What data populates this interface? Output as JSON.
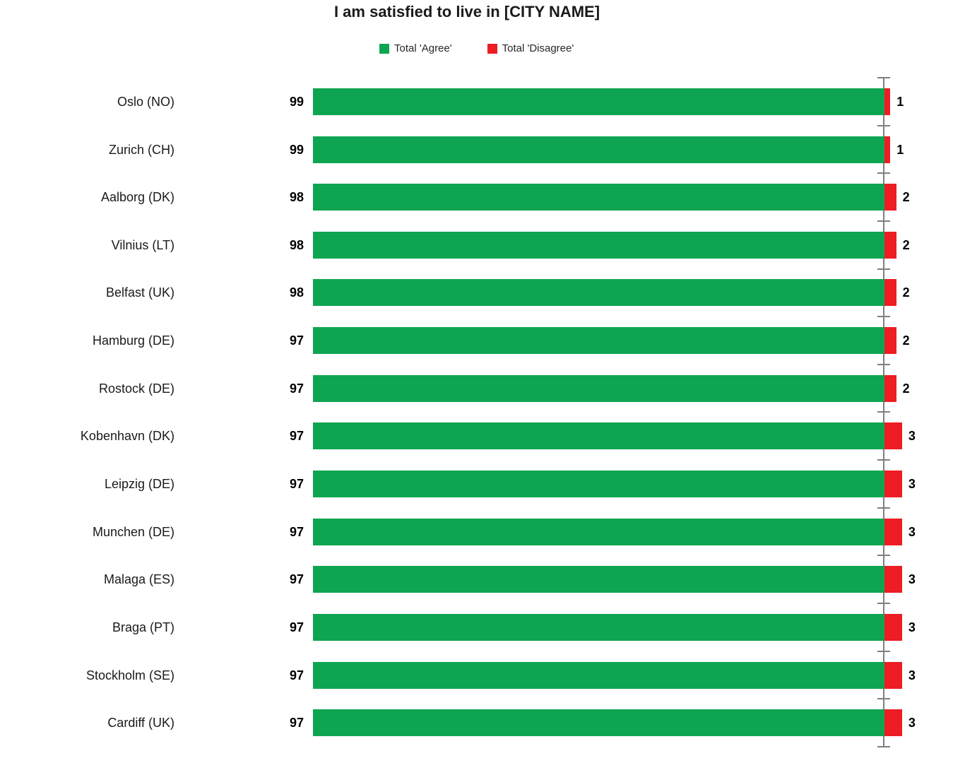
{
  "title": "I am satisfied to live in [CITY NAME]",
  "legend": {
    "agree": {
      "label": "Total 'Agree'",
      "color": "#0EA552"
    },
    "disagree": {
      "label": "Total 'Disagree'",
      "color": "#EE1C24"
    }
  },
  "chart_data": {
    "type": "bar",
    "orientation": "horizontal",
    "title": "I am satisfied to live in [CITY NAME]",
    "legend_position": "top",
    "grid": "off",
    "value_labels": "outside both ends",
    "categories": [
      "Oslo (NO)",
      "Zurich (CH)",
      "Aalborg (DK)",
      "Vilnius (LT)",
      "Belfast (UK)",
      "Hamburg (DE)",
      "Rostock (DE)",
      "Kobenhavn (DK)",
      "Leipzig (DE)",
      "Munchen (DE)",
      "Malaga (ES)",
      "Braga (PT)",
      "Stockholm (SE)",
      "Cardiff (UK)"
    ],
    "series": [
      {
        "name": "Total 'Agree'",
        "color": "#0EA552",
        "values": [
          99,
          99,
          98,
          98,
          98,
          97,
          97,
          97,
          97,
          97,
          97,
          97,
          97,
          97
        ]
      },
      {
        "name": "Total 'Disagree'",
        "color": "#EE1C24",
        "values": [
          1,
          1,
          2,
          2,
          2,
          2,
          2,
          3,
          3,
          3,
          3,
          3,
          3,
          3
        ]
      }
    ]
  }
}
